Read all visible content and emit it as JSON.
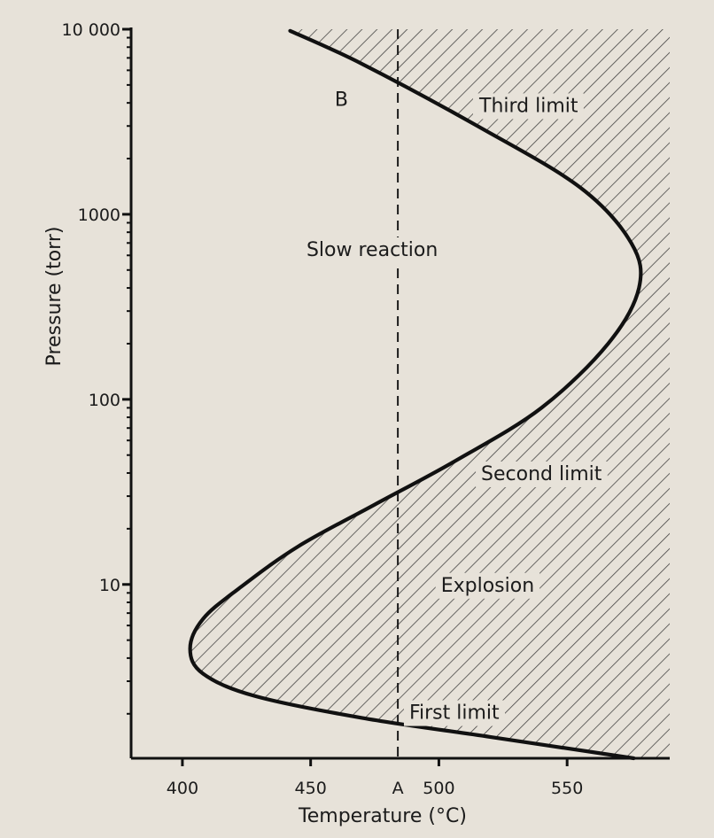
{
  "chart_data": {
    "type": "line",
    "title": "",
    "xlabel": "Temperature (°C)",
    "ylabel": "Pressure (torr)",
    "xlim": [
      380,
      590
    ],
    "ylim": [
      1.15,
      10000
    ],
    "y_scale": "log",
    "x_ticks": [
      {
        "value": 400,
        "label": "400"
      },
      {
        "value": 450,
        "label": "450"
      },
      {
        "value": 500,
        "label": "500"
      },
      {
        "value": 550,
        "label": "550"
      }
    ],
    "y_ticks": [
      {
        "value": 10,
        "label": "10"
      },
      {
        "value": 100,
        "label": "100"
      },
      {
        "value": 1000,
        "label": "1000"
      },
      {
        "value": 10000,
        "label": "10 000"
      }
    ],
    "series": [
      {
        "points": [
          {
            "x": 576,
            "y": 1.15
          },
          {
            "x": 520,
            "y": 1.5
          },
          {
            "x": 470,
            "y": 1.9
          },
          {
            "x": 428,
            "y": 2.5
          },
          {
            "x": 408,
            "y": 3.3
          },
          {
            "x": 403,
            "y": 4.5
          },
          {
            "x": 408,
            "y": 6.5
          },
          {
            "x": 422,
            "y": 9.5
          },
          {
            "x": 445,
            "y": 16
          },
          {
            "x": 475,
            "y": 27
          },
          {
            "x": 507,
            "y": 47
          },
          {
            "x": 540,
            "y": 90
          },
          {
            "x": 566,
            "y": 200
          },
          {
            "x": 578,
            "y": 400
          },
          {
            "x": 575,
            "y": 700
          },
          {
            "x": 555,
            "y": 1400
          },
          {
            "x": 515,
            "y": 3000
          },
          {
            "x": 470,
            "y": 6500
          },
          {
            "x": 442,
            "y": 9800
          }
        ]
      }
    ],
    "reference_line": {
      "x": 484,
      "style": "dashed",
      "label": "A"
    },
    "shaded_region": "explosion region (hatched, right of curve)",
    "annotations": [
      {
        "text": "B",
        "x": 462,
        "y": 4200
      },
      {
        "text": "Third limit",
        "x": 535,
        "y": 3900
      },
      {
        "text": "Slow reaction",
        "x": 474,
        "y": 650
      },
      {
        "text": "Second limit",
        "x": 540,
        "y": 40
      },
      {
        "text": "Explosion",
        "x": 519,
        "y": 10
      },
      {
        "text": "First limit",
        "x": 506,
        "y": 2.05
      }
    ],
    "grid": false,
    "legend": "none"
  }
}
